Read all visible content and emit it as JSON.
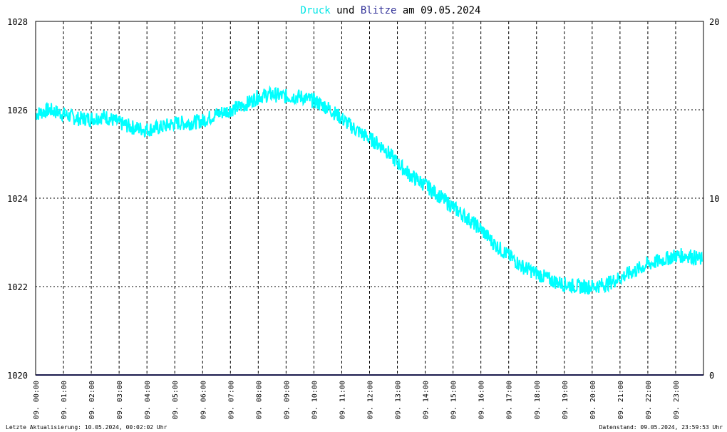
{
  "title": {
    "part1": "Druck",
    "part2": " und ",
    "part3": "Blitze",
    "part4": " am 09.05.2024"
  },
  "footer": {
    "left": "Letzte Aktualisierung: 10.05.2024, 00:02:02 Uhr",
    "right": "Datenstand: 09.05.2024, 23:59:53 Uhr"
  },
  "colors": {
    "pressure": "#00ffff",
    "lightning": "#333399",
    "title_text": "#000000",
    "grid": "#000000",
    "background": "#ffffff"
  },
  "chart_data": {
    "type": "line",
    "grid": true,
    "x_tick_labels": [
      "09. 00:00",
      "09. 01:00",
      "09. 02:00",
      "09. 03:00",
      "09. 04:00",
      "09. 05:00",
      "09. 06:00",
      "09. 07:00",
      "09. 08:00",
      "09. 09:00",
      "09. 10:00",
      "09. 11:00",
      "09. 12:00",
      "09. 13:00",
      "09. 14:00",
      "09. 15:00",
      "09. 16:00",
      "09. 17:00",
      "09. 18:00",
      "09. 19:00",
      "09. 20:00",
      "09. 21:00",
      "09. 22:00",
      "09. 23:00"
    ],
    "x_range": [
      0,
      24
    ],
    "y_left": {
      "ylim": [
        1020,
        1028
      ],
      "ticks": [
        1020,
        1022,
        1024,
        1026,
        1028
      ]
    },
    "y_right": {
      "ylim": [
        0,
        20
      ],
      "ticks": [
        0,
        10,
        20
      ]
    },
    "series": [
      {
        "name": "Druck",
        "axis": "left",
        "x": [
          0,
          0.5,
          1,
          1.5,
          2,
          2.5,
          3,
          3.5,
          4,
          4.5,
          5,
          5.5,
          6,
          6.5,
          7,
          7.5,
          8,
          8.5,
          9,
          9.5,
          10,
          10.5,
          11,
          11.5,
          12,
          12.5,
          13,
          13.5,
          14,
          14.5,
          15,
          15.5,
          16,
          16.5,
          17,
          17.5,
          18,
          18.5,
          19,
          19.5,
          20,
          20.5,
          21,
          21.5,
          22,
          22.5,
          23,
          23.5,
          23.95
        ],
        "y": [
          1025.9,
          1026.0,
          1025.9,
          1025.8,
          1025.8,
          1025.85,
          1025.7,
          1025.6,
          1025.55,
          1025.6,
          1025.7,
          1025.7,
          1025.75,
          1025.9,
          1026.0,
          1026.1,
          1026.3,
          1026.35,
          1026.3,
          1026.3,
          1026.2,
          1026.05,
          1025.8,
          1025.55,
          1025.35,
          1025.15,
          1024.8,
          1024.5,
          1024.3,
          1024.05,
          1023.8,
          1023.55,
          1023.3,
          1022.95,
          1022.7,
          1022.45,
          1022.3,
          1022.15,
          1022.05,
          1022.0,
          1022.0,
          1022.05,
          1022.2,
          1022.35,
          1022.5,
          1022.6,
          1022.7,
          1022.7,
          1022.6
        ]
      },
      {
        "name": "Blitze",
        "axis": "right",
        "x": [
          0,
          24
        ],
        "y": [
          0,
          0
        ]
      }
    ]
  }
}
